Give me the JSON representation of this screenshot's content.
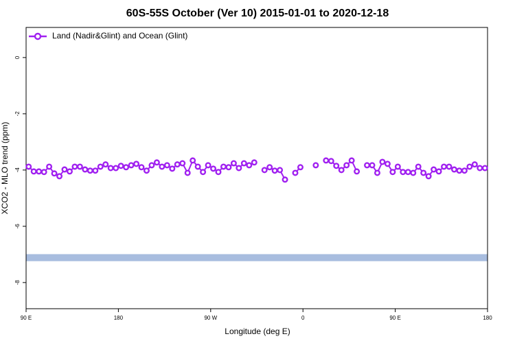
{
  "chart_data": {
    "type": "line",
    "title": "60S-55S October (Ver 10)   2015-01-01 to 2020-12-18",
    "xlabel": "Longitude (deg E)",
    "ylabel": "XCO2 - MLO trend (ppm)",
    "xlim": [
      90,
      540
    ],
    "xticks": [
      {
        "value": 90,
        "label": "90 E"
      },
      180,
      {
        "value": 270,
        "label": "90 W"
      },
      {
        "value": 360,
        "label": "0"
      },
      {
        "value": 450,
        "label": "90 E"
      },
      {
        "value": 540,
        "label": "180"
      }
    ],
    "ylim": [
      -8.93,
      1.07
    ],
    "yticks": [
      0,
      -2,
      -4,
      -6,
      -8
    ],
    "legend": "top-left",
    "reference_band": {
      "ymin": -7.24,
      "ymax": -6.99,
      "color": "#a8bddf"
    },
    "x": [
      92.5,
      97.5,
      102.5,
      107.5,
      112.5,
      117.5,
      122.5,
      127.5,
      132.5,
      137.5,
      142.5,
      147.5,
      152.5,
      157.5,
      162.5,
      167.5,
      172.5,
      177.5,
      182.5,
      187.5,
      192.5,
      197.5,
      202.5,
      207.5,
      212.5,
      217.5,
      222.5,
      227.5,
      232.5,
      237.5,
      242.5,
      247.5,
      252.5,
      257.5,
      262.5,
      267.5,
      272.5,
      277.5,
      282.5,
      287.5,
      292.5,
      297.5,
      302.5,
      307.5,
      312.5,
      317.5,
      322.5,
      327.5,
      332.5,
      337.5,
      342.5,
      347.5,
      352.5,
      357.5,
      362.5,
      367.5,
      372.5,
      377.5,
      382.5,
      387.5,
      392.5,
      397.5,
      402.5,
      407.5,
      412.5,
      417.5,
      422.5,
      427.5,
      432.5,
      437.5,
      442.5,
      447.5,
      452.5,
      457.5,
      462.5,
      467.5,
      472.5,
      477.5,
      482.5,
      487.5,
      492.5,
      497.5,
      502.5,
      507.5,
      512.5,
      517.5,
      522.5,
      527.5,
      532.5,
      537.5
    ],
    "series": [
      {
        "name": "Land (Nadir&Glint) and Ocean (Glint)",
        "color": "#a020f0",
        "values": [
          -3.88,
          -4.05,
          -4.05,
          -4.07,
          -3.88,
          -4.12,
          -4.22,
          -3.98,
          -4.05,
          -3.88,
          -3.88,
          -3.98,
          -4.02,
          -4.02,
          -3.88,
          -3.8,
          -3.93,
          -3.93,
          -3.85,
          -3.9,
          -3.83,
          -3.78,
          -3.9,
          -4.02,
          -3.83,
          -3.73,
          -3.88,
          -3.83,
          -3.95,
          -3.8,
          -3.76,
          -4.1,
          -3.66,
          -3.88,
          -4.07,
          -3.83,
          -3.95,
          -4.07,
          -3.88,
          -3.9,
          -3.76,
          -3.93,
          -3.76,
          -3.83,
          -3.73,
          null,
          -4.0,
          -3.9,
          -4.02,
          -4.0,
          -4.34,
          null,
          -4.1,
          -3.9,
          null,
          null,
          -3.83,
          null,
          -3.66,
          -3.68,
          -3.85,
          -4.0,
          -3.83,
          -3.66,
          -4.05,
          null,
          -3.83,
          -3.83,
          -4.1,
          -3.71,
          -3.78,
          -4.07,
          -3.88,
          -4.07,
          -4.07,
          -4.1,
          -3.88,
          -4.1,
          -4.22,
          -3.98,
          -4.05,
          -3.88,
          -3.88,
          -3.98,
          -4.02,
          -4.02,
          -3.88,
          -3.8,
          -3.93,
          -3.93
        ]
      }
    ]
  }
}
